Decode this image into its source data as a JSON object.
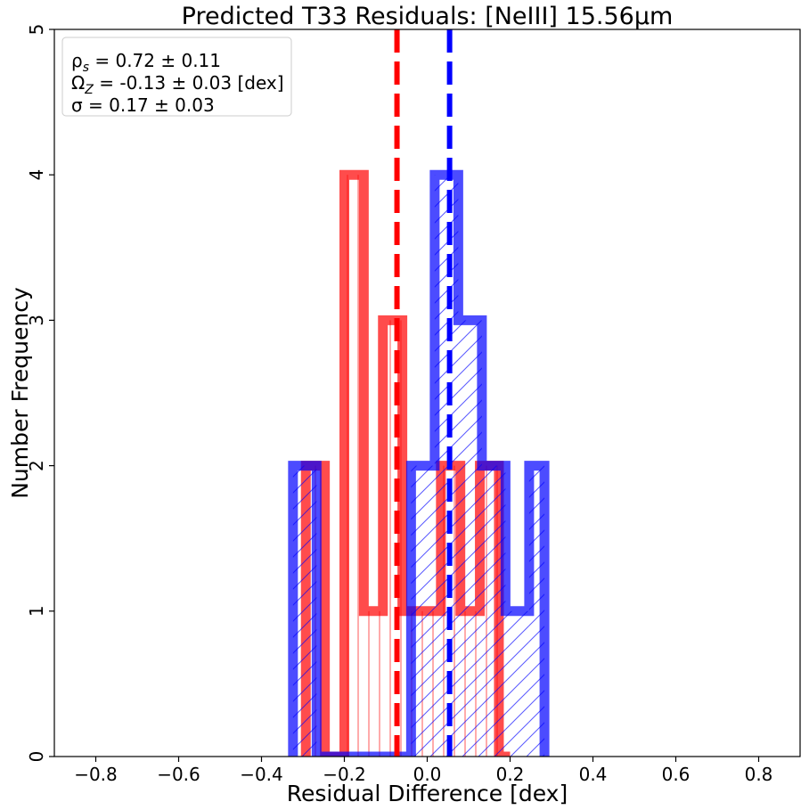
{
  "chart_data": {
    "type": "histogram",
    "title": "Predicted T33 Residuals: [NeIII] 15.56μm",
    "xlabel": "Residual Difference [dex]",
    "ylabel": "Number Frequency",
    "xlim": [
      -0.9,
      0.9
    ],
    "ylim": [
      0,
      5
    ],
    "xticks": [
      -0.8,
      -0.6,
      -0.4,
      -0.2,
      0.0,
      0.2,
      0.4,
      0.6,
      0.8
    ],
    "xtick_labels": [
      "−0.8",
      "−0.6",
      "−0.4",
      "−0.2",
      "0.0",
      "0.2",
      "0.4",
      "0.6",
      "0.8"
    ],
    "yticks": [
      0,
      1,
      2,
      3,
      4,
      5
    ],
    "ytick_labels": [
      "0",
      "1",
      "2",
      "3",
      "4",
      "5"
    ],
    "grid": false,
    "legend_position": "top-left",
    "stats_box": [
      "ρ_s = 0.72 ± 0.11",
      "Ω_Z = -0.13 ± 0.03 [dex]",
      "σ = 0.17 ± 0.03"
    ],
    "stats_parts": [
      {
        "sym": "ρ",
        "sub": "s",
        "rest": " = 0.72 ± 0.11"
      },
      {
        "sym": "Ω",
        "sub": "Z",
        "rest": " = -0.13 ± 0.03 [dex]"
      },
      {
        "sym": "σ = 0.17 ± 0.03",
        "sub": "",
        "rest": ""
      }
    ],
    "series": [
      {
        "color": "#ff0000",
        "hatch": "vertical",
        "bin_edges": [
          -0.293,
          -0.247,
          -0.2,
          -0.153,
          -0.107,
          -0.06,
          -0.013,
          0.033,
          0.08,
          0.127,
          0.173,
          0.2
        ],
        "counts": [
          2,
          0,
          4,
          1,
          3,
          1,
          1,
          2,
          1,
          2,
          0
        ],
        "median_line": -0.073
      },
      {
        "color": "#0000ff",
        "hatch": "diagonal",
        "bin_edges": [
          -0.324,
          -0.267,
          -0.21,
          -0.153,
          -0.096,
          -0.039,
          0.018,
          0.075,
          0.132,
          0.189,
          0.246,
          0.283
        ],
        "counts": [
          2,
          0,
          0,
          0,
          0,
          2,
          4,
          3,
          2,
          1,
          2
        ],
        "median_line": 0.054
      }
    ]
  }
}
